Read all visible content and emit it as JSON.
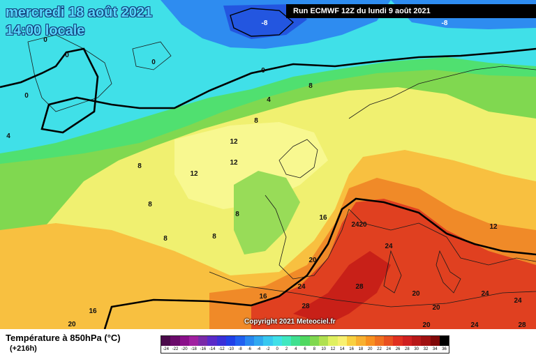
{
  "header": {
    "date": "mercredi 18 août 2021",
    "time": "14:00 locale",
    "run": "Run ECMWF 12Z du lundi 9 août 2021"
  },
  "map": {
    "contour_labels": [
      "-8",
      "-8",
      "0",
      "0",
      "0",
      "0",
      "0",
      "4",
      "4",
      "8",
      "8",
      "8",
      "8",
      "8",
      "8",
      "8",
      "12",
      "12",
      "12",
      "12",
      "16",
      "16",
      "16",
      "20",
      "20",
      "20",
      "20",
      "20",
      "20",
      "24",
      "24",
      "24",
      "24",
      "24",
      "24",
      "28",
      "28",
      "28"
    ]
  },
  "footer": {
    "param": "Température à 850hPa (°C)",
    "lead": "(+216h)",
    "copyright": "Copyright 2021 Meteociel.fr"
  },
  "legend": {
    "ticks": [
      "-24",
      "-22",
      "-20",
      "-18",
      "-16",
      "-14",
      "-12",
      "-10",
      "-8",
      "-6",
      "-4",
      "-2",
      "0",
      "2",
      "4",
      "6",
      "8",
      "10",
      "12",
      "14",
      "16",
      "18",
      "20",
      "22",
      "24",
      "26",
      "28",
      "30",
      "32",
      "34",
      "36"
    ],
    "colors": [
      "#4a0a4a",
      "#6a0a6a",
      "#8a108a",
      "#a020a0",
      "#7a2aa8",
      "#5a2ac8",
      "#3a30d8",
      "#2040e8",
      "#2060f0",
      "#2888f0",
      "#30a8f0",
      "#38c8f0",
      "#40e0e8",
      "#40e8c0",
      "#40e090",
      "#50d860",
      "#80d850",
      "#b0e050",
      "#e0f060",
      "#f8f070",
      "#f8d040",
      "#f8b030",
      "#f89020",
      "#f07020",
      "#e85020",
      "#e03020",
      "#d02020",
      "#b81818",
      "#a01010",
      "#800808",
      "#000000"
    ]
  }
}
